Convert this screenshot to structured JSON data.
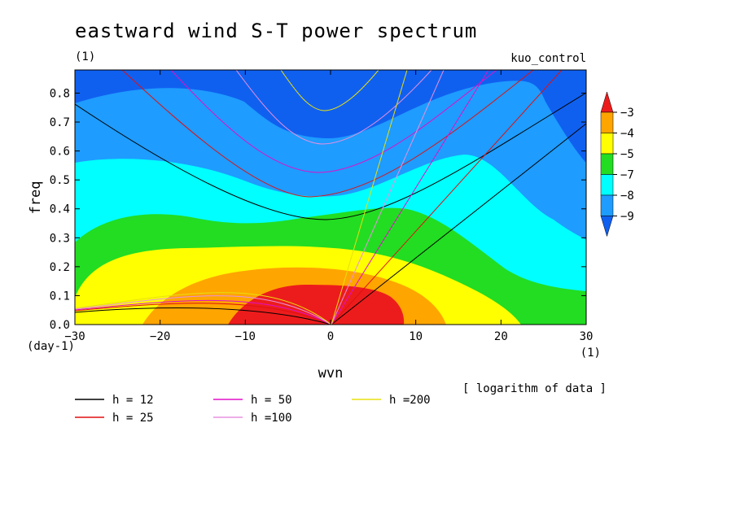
{
  "chart_data": {
    "type": "heatmap",
    "title": "eastward wind S-T power spectrum",
    "subtitle_left": "(1)",
    "subtitle_right": "kuo_control",
    "xlabel": "wvn",
    "ylabel": "freq",
    "x_unit_label": "(1)",
    "y_unit_label": "(day-1)",
    "xlim": [
      -30,
      30
    ],
    "ylim": [
      0,
      0.88
    ],
    "x_ticks": [
      -30,
      -20,
      -10,
      0,
      10,
      20,
      30
    ],
    "x_tick_labels": [
      "−30",
      "−20",
      "−10",
      "0",
      "10",
      "20",
      "30"
    ],
    "y_ticks": [
      0.0,
      0.1,
      0.2,
      0.3,
      0.4,
      0.5,
      0.6,
      0.7,
      0.8
    ],
    "y_tick_labels": [
      "0.0",
      "0.1",
      "0.2",
      "0.3",
      "0.4",
      "0.5",
      "0.6",
      "0.7",
      "0.8"
    ],
    "colorbar": {
      "labels": [
        "−3",
        "−4",
        "−5",
        "−7",
        "−8",
        "−9"
      ],
      "colors": [
        "#ed1c1c",
        "#ffa500",
        "#ffff00",
        "#22dd22",
        "#00ffff",
        "#1e9cff",
        "#1060f0"
      ],
      "note": "[ logarithm of data ]"
    },
    "legend": [
      {
        "label": "h = 12",
        "color": "#000000"
      },
      {
        "label": "h = 25",
        "color": "#e01010"
      },
      {
        "label": "h = 50",
        "color": "#e010c8"
      },
      {
        "label": "h =100",
        "color": "#e890e0"
      },
      {
        "label": "h =200",
        "color": "#e8e010"
      }
    ],
    "dispersion_h": [
      12,
      25,
      50,
      100,
      200
    ]
  }
}
